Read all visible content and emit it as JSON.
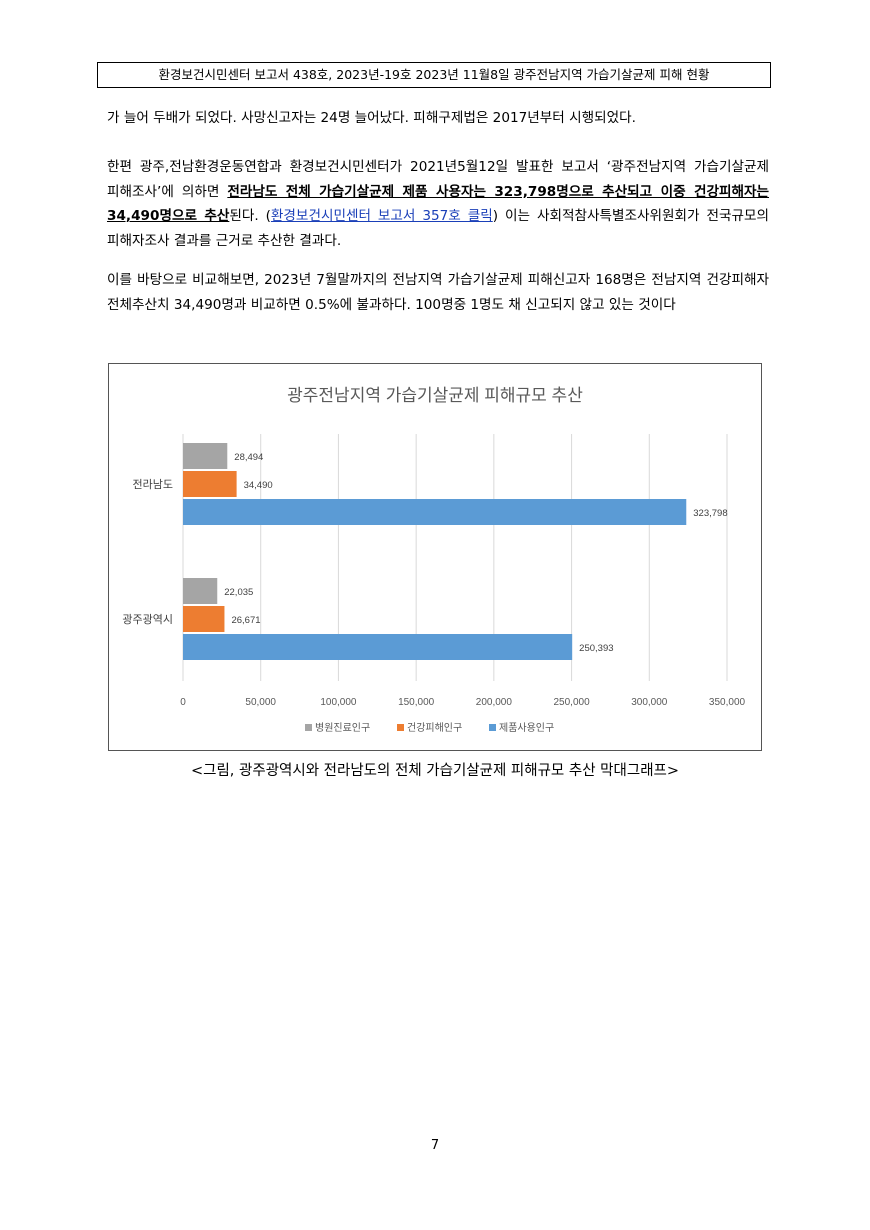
{
  "header": {
    "title": "환경보건시민센터 보고서 438호, 2023년-19호 2023년 11월8일 광주전남지역 가습기살균제 피해 현황"
  },
  "body": {
    "p1": "가 늘어 두배가 되었다. 사망신고자는 24명 늘어났다. 피해구제법은 2017년부터 시행되었다.",
    "p2_a": "한편 광주,전남환경운동연합과 환경보건시민센터가 2021년5월12일 발표한 보고서 ‘광주전남지역 가습기살균제 피해조사’에 의하면 ",
    "p2_bold1": "전라남도 전체 가습기살균제 제품 사용자는 323,798명으로 추산되고 이중 건강피해자는 34,490명으로 추산",
    "p2_b": "된다. (",
    "p2_link": "환경보건시민센터 보고서 357호 클릭",
    "p2_c": ")  이는 사회적참사특별조사위원회가 전국규모의 피해자조사 결과를 근거로 추산한 결과다.",
    "p3": "이를 바탕으로 비교해보면, 2023년 7월말까지의 전남지역 가습기살균제 피해신고자 168명은 전남지역 건강피해자 전체추산치 34,490명과 비교하면 0.5%에 불과하다. 100명중 1명도 채 신고되지 않고 있는 것이다"
  },
  "chart_data": {
    "type": "bar",
    "orientation": "horizontal",
    "title": "광주전남지역 가습기살균제 피해규모 추산",
    "categories": [
      "전라남도",
      "광주광역시"
    ],
    "series": [
      {
        "name": "병원진료인구",
        "color": "#a5a5a5",
        "values": [
          28494,
          22035
        ],
        "labels": [
          "28,494",
          "22,035"
        ]
      },
      {
        "name": "건강피해인구",
        "color": "#ed7d31",
        "values": [
          34490,
          26671
        ],
        "labels": [
          "34,490",
          "26,671"
        ]
      },
      {
        "name": "제품사용인구",
        "color": "#5b9bd5",
        "values": [
          323798,
          250393
        ],
        "labels": [
          "323,798",
          "250,393"
        ]
      }
    ],
    "xlim": [
      0,
      350000
    ],
    "xticks": [
      0,
      50000,
      100000,
      150000,
      200000,
      250000,
      300000,
      350000
    ],
    "xtick_labels": [
      "0",
      "50,000",
      "100,000",
      "150,000",
      "200,000",
      "250,000",
      "300,000",
      "350,000"
    ],
    "grid": true,
    "legend_position": "bottom"
  },
  "caption": "<그림, 광주광역시와 전라남도의 전체 가습기살균제 피해규모 추산 막대그래프>",
  "page_number": "7"
}
